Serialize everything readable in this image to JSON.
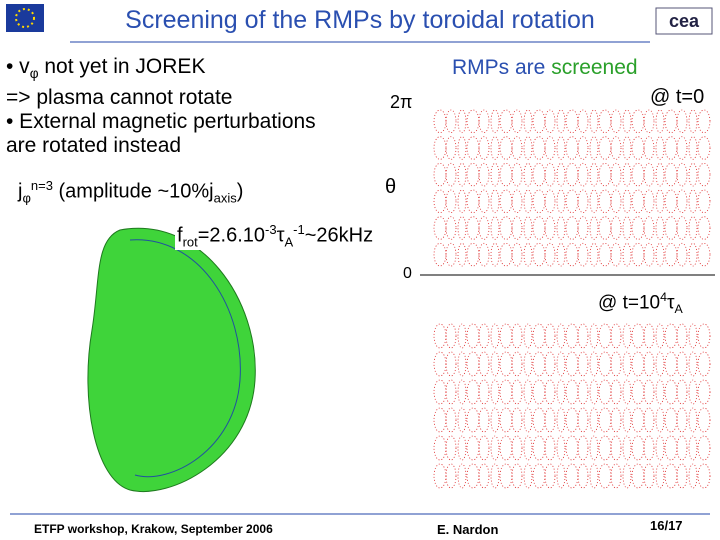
{
  "header": {
    "title": "Screening of the RMPs by toroidal rotation"
  },
  "bullets": [
    "• v",
    "φ",
    " not yet in JOREK",
    "=> plasma cannot rotate",
    "• External magnetic perturbations",
    "are rotated instead"
  ],
  "current": [
    "j",
    "φ",
    "n=3",
    " (amplitude ~10%j",
    "axis",
    ")"
  ],
  "rotation": [
    "f",
    "rot",
    "=2.6.10",
    "-3",
    "τ",
    "A",
    "-1",
    "~26kHz"
  ],
  "right": {
    "line1a": "RMPs are",
    "line1b": "screened",
    "t0": "@ t=0",
    "t1": [
      "@ t=10",
      "4",
      "τ",
      "A"
    ],
    "axis_top": "2π",
    "axis_mid": "θ",
    "axis_zero": "0"
  },
  "footer": {
    "left": "ETFP workshop, Krakow, September 2006",
    "center": "E. Nardon",
    "page": "16/17"
  }
}
